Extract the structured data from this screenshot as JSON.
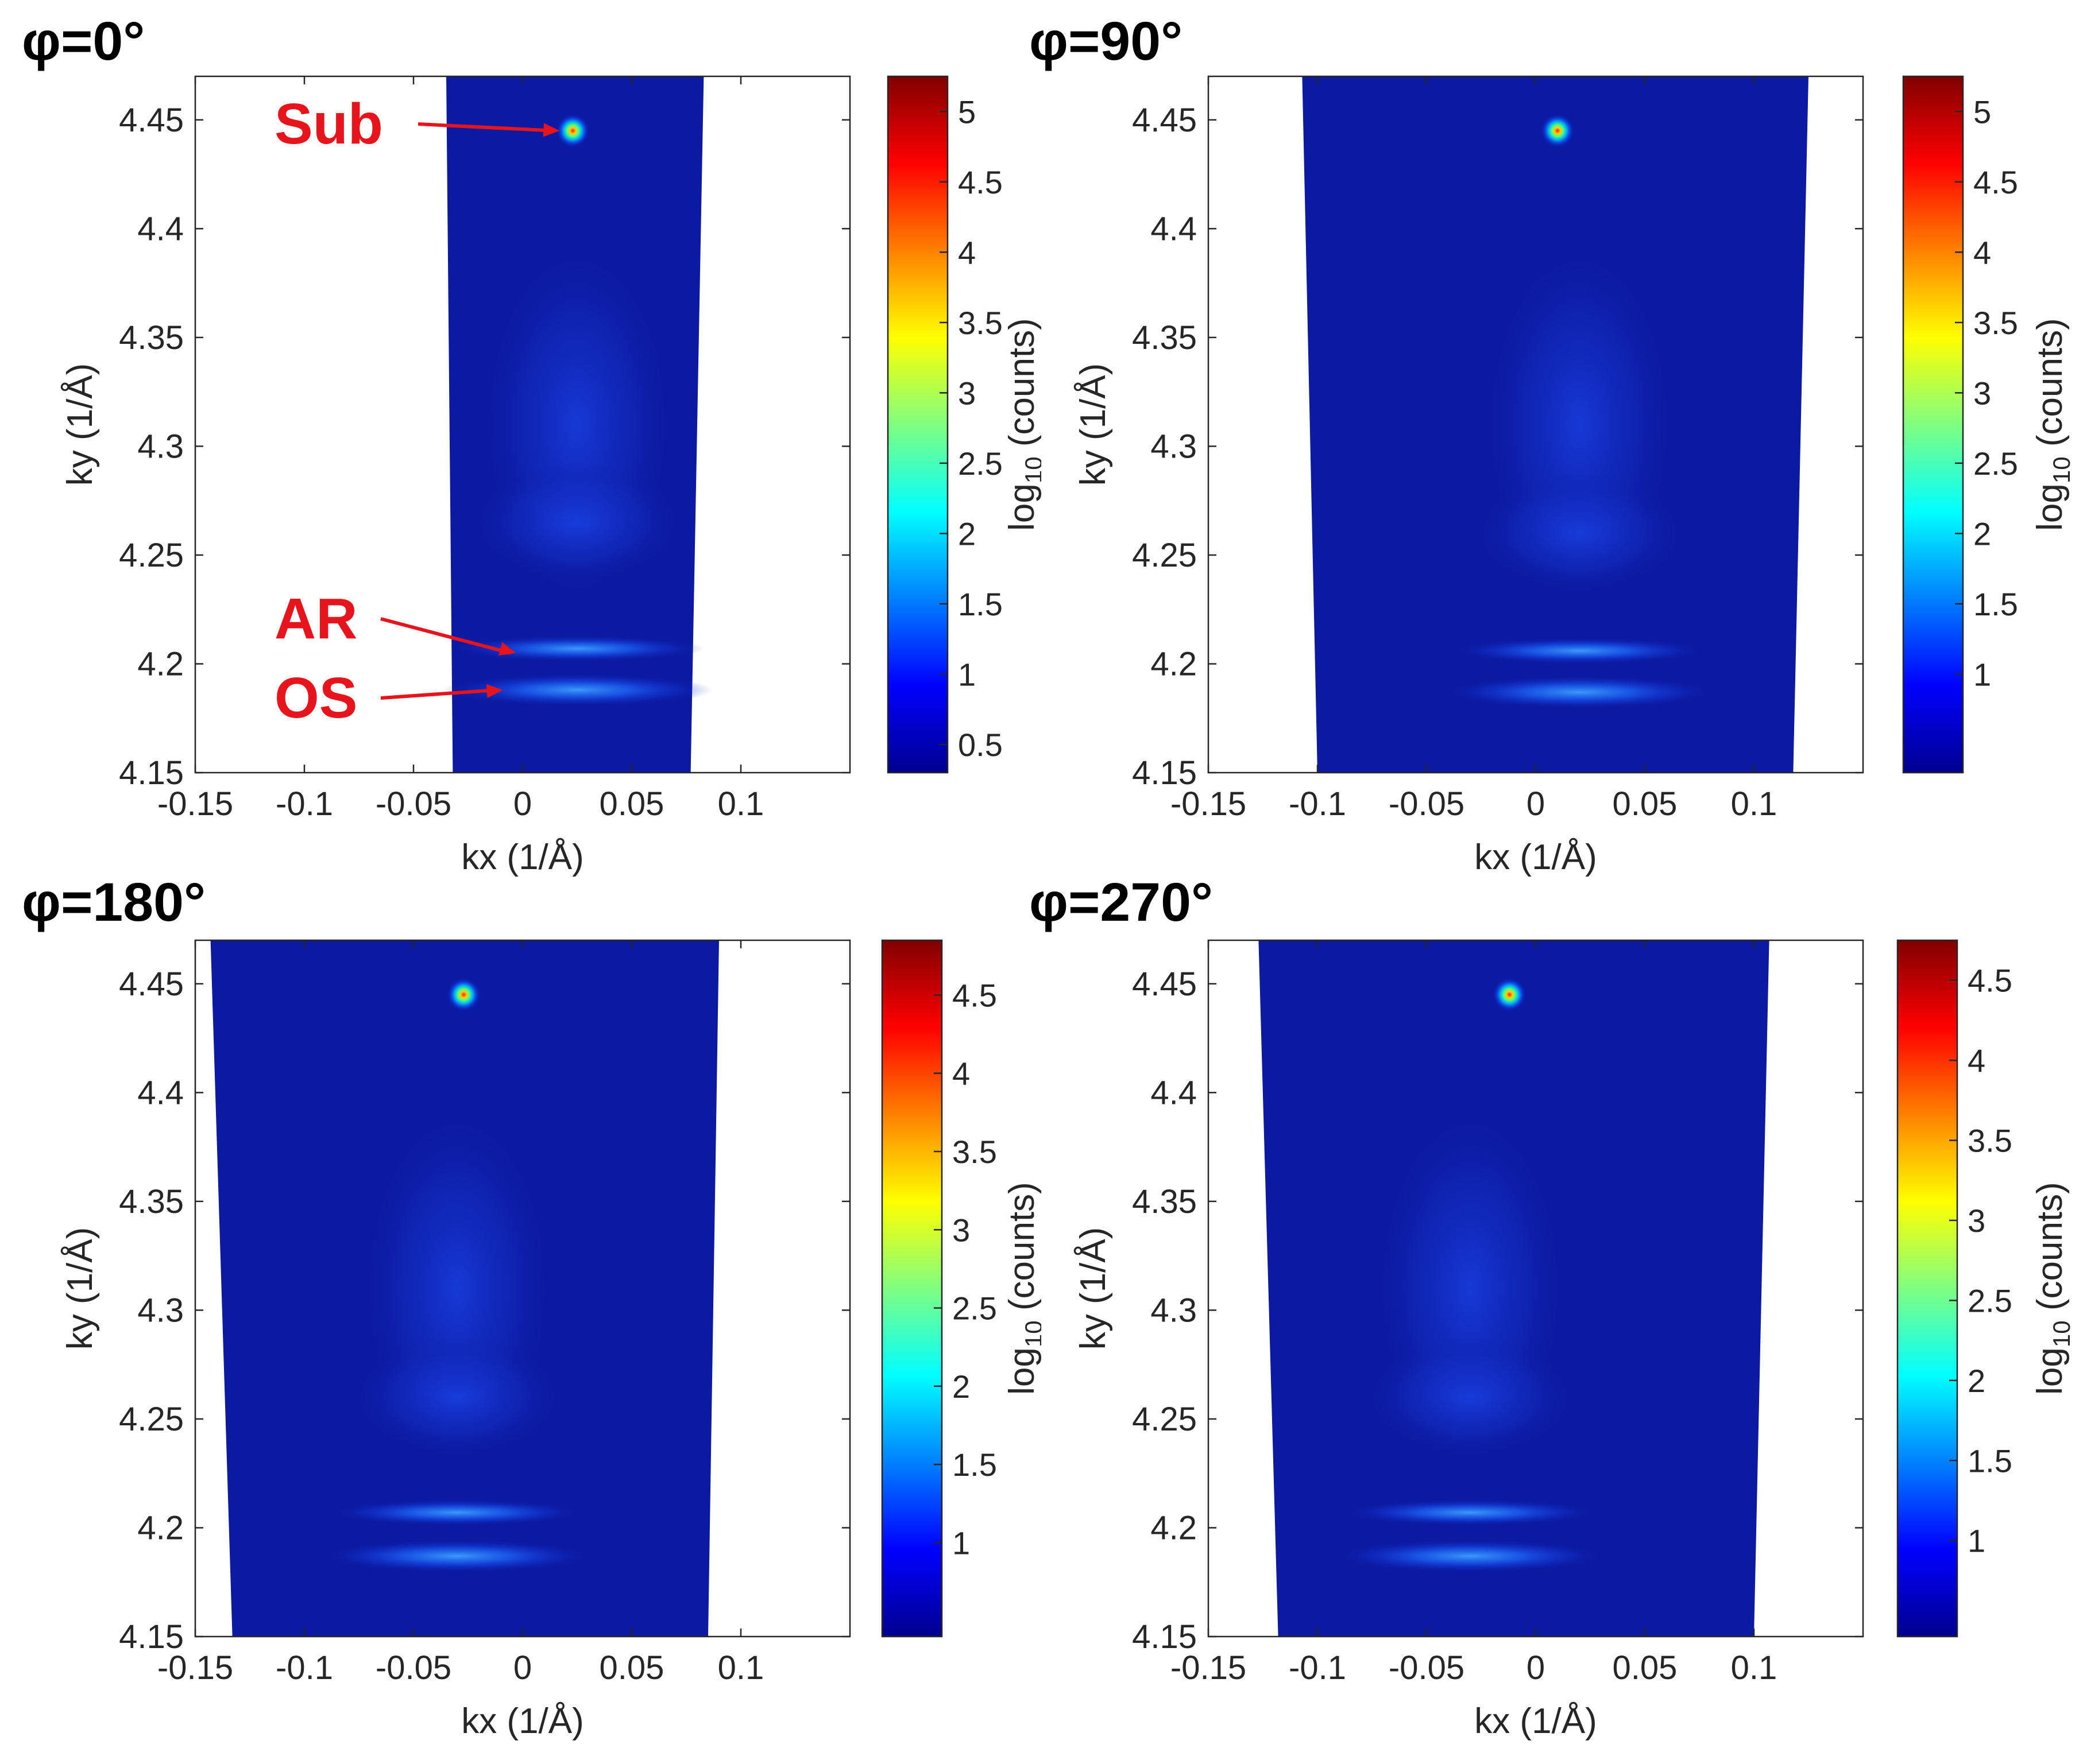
{
  "figure": {
    "colormap": [
      "#00008f",
      "#0000ff",
      "#0080ff",
      "#00ffff",
      "#80ff80",
      "#ffff00",
      "#ff8000",
      "#ff0000",
      "#800000"
    ],
    "background_color": "#ffffff",
    "plot_fill_color": "#0b1aa0",
    "annotation_color": "#e8141b"
  },
  "chart_data": [
    {
      "type": "heatmap",
      "title": "φ=0°",
      "xlabel": "kx (1/Å)",
      "ylabel": "ky (1/Å)",
      "xlim": [
        -0.15,
        0.15
      ],
      "ylim": [
        4.15,
        4.47
      ],
      "xticks": [
        -0.15,
        -0.1,
        -0.05,
        0,
        0.05,
        0.1
      ],
      "xtick_labels": [
        "-0.15",
        "-0.1",
        "-0.05",
        "0",
        "0.05",
        "0.1"
      ],
      "yticks": [
        4.15,
        4.2,
        4.25,
        4.3,
        4.35,
        4.4,
        4.45
      ],
      "ytick_labels": [
        "4.15",
        "4.2",
        "4.25",
        "4.3",
        "4.35",
        "4.4",
        "4.45"
      ],
      "data_region_kx": {
        "top": [
          -0.035,
          0.083
        ],
        "bottom": [
          -0.032,
          0.077
        ]
      },
      "features": {
        "sub_peak": {
          "kx": 0.023,
          "ky": 4.445
        },
        "ar_band": {
          "kx": 0.025,
          "ky": 4.207
        },
        "os_band": {
          "kx": 0.025,
          "ky": 4.188
        },
        "diffuse_band": {
          "kx": 0.025,
          "ky": 4.265
        }
      },
      "colorbar": {
        "label": "log10 (counts)",
        "range": [
          0.3,
          5.25
        ],
        "ticks": [
          0.5,
          1,
          1.5,
          2,
          2.5,
          3,
          3.5,
          4,
          4.5,
          5
        ],
        "tick_labels": [
          "0.5",
          "1",
          "1.5",
          "2",
          "2.5",
          "3",
          "3.5",
          "4",
          "4.5",
          "5"
        ]
      },
      "annotations": [
        {
          "label": "Sub",
          "target_kx": 0.018,
          "target_ky": 4.445
        },
        {
          "label": "AR",
          "target_kx": -0.002,
          "target_ky": 4.205
        },
        {
          "label": "OS",
          "target_kx": -0.008,
          "target_ky": 4.188
        }
      ]
    },
    {
      "type": "heatmap",
      "title": "φ=90°",
      "xlabel": "kx (1/Å)",
      "ylabel": "ky (1/Å)",
      "xlim": [
        -0.15,
        0.15
      ],
      "ylim": [
        4.15,
        4.47
      ],
      "xticks": [
        -0.15,
        -0.1,
        -0.05,
        0,
        0.05,
        0.1
      ],
      "xtick_labels": [
        "-0.15",
        "-0.1",
        "-0.05",
        "0",
        "0.05",
        "0.1"
      ],
      "yticks": [
        4.15,
        4.2,
        4.25,
        4.3,
        4.35,
        4.4,
        4.45
      ],
      "ytick_labels": [
        "4.15",
        "4.2",
        "4.25",
        "4.3",
        "4.35",
        "4.4",
        "4.45"
      ],
      "data_region_kx": {
        "top": [
          -0.107,
          0.125
        ],
        "bottom": [
          -0.1,
          0.118
        ]
      },
      "features": {
        "sub_peak": {
          "kx": 0.01,
          "ky": 4.445
        },
        "ar_band": {
          "kx": 0.02,
          "ky": 4.206
        },
        "os_band": {
          "kx": 0.02,
          "ky": 4.187
        },
        "diffuse_band": {
          "kx": 0.02,
          "ky": 4.26
        }
      },
      "colorbar": {
        "label": "log10 (counts)",
        "range": [
          0.3,
          5.25
        ],
        "ticks": [
          1,
          1.5,
          2,
          2.5,
          3,
          3.5,
          4,
          4.5,
          5
        ],
        "tick_labels": [
          "1",
          "1.5",
          "2",
          "2.5",
          "3",
          "3.5",
          "4",
          "4.5",
          "5"
        ]
      },
      "annotations": []
    },
    {
      "type": "heatmap",
      "title": "φ=180°",
      "xlabel": "kx (1/Å)",
      "ylabel": "ky (1/Å)",
      "xlim": [
        -0.15,
        0.15
      ],
      "ylim": [
        4.15,
        4.47
      ],
      "xticks": [
        -0.15,
        -0.1,
        -0.05,
        0,
        0.05,
        0.1
      ],
      "xtick_labels": [
        "-0.15",
        "-0.1",
        "-0.05",
        "0",
        "0.05",
        "0.1"
      ],
      "yticks": [
        4.15,
        4.2,
        4.25,
        4.3,
        4.35,
        4.4,
        4.45
      ],
      "ytick_labels": [
        "4.15",
        "4.2",
        "4.25",
        "4.3",
        "4.35",
        "4.4",
        "4.45"
      ],
      "data_region_kx": {
        "top": [
          -0.143,
          0.09
        ],
        "bottom": [
          -0.133,
          0.085
        ]
      },
      "features": {
        "sub_peak": {
          "kx": -0.027,
          "ky": 4.445
        },
        "ar_band": {
          "kx": -0.03,
          "ky": 4.207
        },
        "os_band": {
          "kx": -0.03,
          "ky": 4.187
        },
        "diffuse_band": {
          "kx": -0.03,
          "ky": 4.26
        }
      },
      "colorbar": {
        "label": "log10 (counts)",
        "range": [
          0.4,
          4.85
        ],
        "ticks": [
          1,
          1.5,
          2,
          2.5,
          3,
          3.5,
          4,
          4.5
        ],
        "tick_labels": [
          "1",
          "1.5",
          "2",
          "2.5",
          "3",
          "3.5",
          "4",
          "4.5"
        ]
      },
      "annotations": []
    },
    {
      "type": "heatmap",
      "title": "φ=270°",
      "xlabel": "kx (1/Å)",
      "ylabel": "ky (1/Å)",
      "xlim": [
        -0.15,
        0.15
      ],
      "ylim": [
        4.15,
        4.47
      ],
      "xticks": [
        -0.15,
        -0.1,
        -0.05,
        0,
        0.05,
        0.1
      ],
      "xtick_labels": [
        "-0.15",
        "-0.1",
        "-0.05",
        "0",
        "0.05",
        "0.1"
      ],
      "yticks": [
        4.15,
        4.2,
        4.25,
        4.3,
        4.35,
        4.4,
        4.45
      ],
      "ytick_labels": [
        "4.15",
        "4.2",
        "4.25",
        "4.3",
        "4.35",
        "4.4",
        "4.45"
      ],
      "data_region_kx": {
        "top": [
          -0.127,
          0.107
        ],
        "bottom": [
          -0.118,
          0.1
        ]
      },
      "features": {
        "sub_peak": {
          "kx": -0.012,
          "ky": 4.445
        },
        "ar_band": {
          "kx": -0.03,
          "ky": 4.207
        },
        "os_band": {
          "kx": -0.03,
          "ky": 4.187
        },
        "diffuse_band": {
          "kx": -0.03,
          "ky": 4.26
        }
      },
      "colorbar": {
        "label": "log10 (counts)",
        "range": [
          0.4,
          4.75
        ],
        "ticks": [
          1,
          1.5,
          2,
          2.5,
          3,
          3.5,
          4,
          4.5
        ],
        "tick_labels": [
          "1",
          "1.5",
          "2",
          "2.5",
          "3",
          "3.5",
          "4",
          "4.5"
        ]
      },
      "annotations": []
    }
  ]
}
